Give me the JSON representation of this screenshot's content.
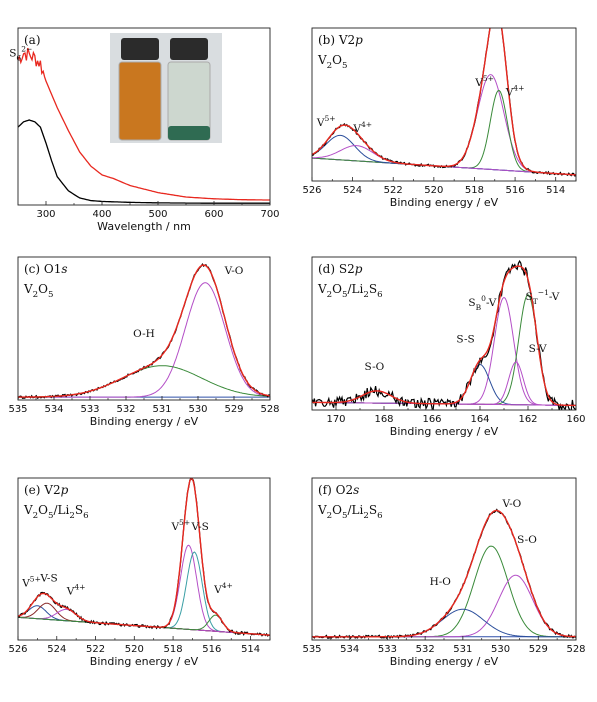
{
  "figure": {
    "panels": [
      {
        "id": "a",
        "title": "(a)",
        "subtitle": "",
        "xlabel": "Wavelength / nm",
        "xlim": [
          250,
          700
        ],
        "xticks": [
          300,
          400,
          500,
          600,
          700
        ],
        "reversed": false,
        "annotations": [
          {
            "text": "S6 2−",
            "x": 255,
            "y": 0.84
          }
        ]
      },
      {
        "id": "b",
        "title": "(b) V2p",
        "subtitle": "V2O5",
        "xlabel": "Binding energy / eV",
        "xlim": [
          513,
          526
        ],
        "xticks": [
          526,
          524,
          522,
          520,
          518,
          516,
          514
        ],
        "reversed": true,
        "annotations": [
          {
            "text": "V5+",
            "x": 517.5,
            "y": 0.62
          },
          {
            "text": "V4+",
            "x": 516.0,
            "y": 0.56
          },
          {
            "text": "V5+",
            "x": 525.3,
            "y": 0.36
          },
          {
            "text": "V4+",
            "x": 523.5,
            "y": 0.32
          }
        ]
      },
      {
        "id": "c",
        "title": "(c) O1s",
        "subtitle": "V2O5",
        "xlabel": "Binding energy / eV",
        "xlim": [
          528,
          535
        ],
        "xticks": [
          535,
          534,
          533,
          532,
          531,
          530,
          529,
          528
        ],
        "reversed": true,
        "annotations": [
          {
            "text": "V-O",
            "x": 529.0,
            "y": 0.88
          },
          {
            "text": "O-H",
            "x": 531.5,
            "y": 0.44
          }
        ]
      },
      {
        "id": "d",
        "title": "(d) S2p",
        "subtitle": "V2O5/Li2S6",
        "xlabel": "Binding energy / eV",
        "xlim": [
          160,
          171
        ],
        "xticks": [
          170,
          168,
          166,
          164,
          162,
          160
        ],
        "reversed": true,
        "annotations": [
          {
            "text": "SB0-V",
            "x": 163.9,
            "y": 0.68
          },
          {
            "text": "ST−1-V",
            "x": 161.4,
            "y": 0.72
          },
          {
            "text": "S-S",
            "x": 164.6,
            "y": 0.44
          },
          {
            "text": "S-V",
            "x": 161.6,
            "y": 0.38
          },
          {
            "text": "S-O",
            "x": 168.4,
            "y": 0.26
          }
        ]
      },
      {
        "id": "e",
        "title": "(e) V2p",
        "subtitle": "V2O5/Li2S6",
        "xlabel": "Binding energy / eV",
        "xlim": [
          513,
          526
        ],
        "xticks": [
          526,
          524,
          522,
          520,
          518,
          516,
          514
        ],
        "reversed": true,
        "annotations": [
          {
            "text": "V5+",
            "x": 517.6,
            "y": 0.68
          },
          {
            "text": "V-S",
            "x": 516.6,
            "y": 0.68
          },
          {
            "text": "V5+",
            "x": 525.3,
            "y": 0.33
          },
          {
            "text": "V-S",
            "x": 524.4,
            "y": 0.36
          },
          {
            "text": "V4+",
            "x": 523.0,
            "y": 0.28
          },
          {
            "text": "V4+",
            "x": 515.4,
            "y": 0.29
          }
        ]
      },
      {
        "id": "f",
        "title": "(f) O2s",
        "subtitle": "V2O5/Li2S6",
        "xlabel": "Binding energy / eV",
        "xlim": [
          528,
          535
        ],
        "xticks": [
          535,
          534,
          533,
          532,
          531,
          530,
          529,
          528
        ],
        "reversed": true,
        "annotations": [
          {
            "text": "V-O",
            "x": 529.7,
            "y": 0.82
          },
          {
            "text": "S-O",
            "x": 529.3,
            "y": 0.6
          },
          {
            "text": "H-O",
            "x": 531.6,
            "y": 0.34
          }
        ]
      }
    ]
  },
  "chart_data": [
    {
      "panel": "a",
      "type": "line",
      "xlim": [
        250,
        700
      ],
      "xlabel": "Wavelength / nm",
      "ylabel": "",
      "series": [
        {
          "color": "#e8281f",
          "x": [
            250,
            260,
            270,
            280,
            290,
            300,
            320,
            340,
            360,
            380,
            400,
            420,
            450,
            500,
            550,
            600,
            650,
            700
          ],
          "y": [
            0.82,
            0.86,
            0.85,
            0.83,
            0.8,
            0.7,
            0.55,
            0.42,
            0.3,
            0.22,
            0.17,
            0.15,
            0.11,
            0.07,
            0.045,
            0.035,
            0.03,
            0.028
          ],
          "noise": true
        },
        {
          "color": "#000000",
          "x": [
            250,
            260,
            270,
            280,
            290,
            300,
            310,
            320,
            340,
            360,
            380,
            400,
            450,
            500,
            600,
            700
          ],
          "y": [
            0.44,
            0.47,
            0.48,
            0.47,
            0.44,
            0.35,
            0.25,
            0.16,
            0.08,
            0.04,
            0.025,
            0.02,
            0.015,
            0.012,
            0.01,
            0.01
          ]
        }
      ]
    },
    {
      "panel": "b",
      "type": "line",
      "xlim": [
        513,
        526
      ],
      "xlabel": "Binding energy / eV",
      "baseline": {
        "color": "#2e4fa8",
        "from": [
          526,
          0.15
        ],
        "to": [
          513,
          0.04
        ]
      },
      "peaks": [
        {
          "name": "V5+",
          "center": 517.2,
          "height": 0.62,
          "width": 0.65,
          "color": "#b44fc7"
        },
        {
          "name": "V4+",
          "center": 516.8,
          "height": 0.52,
          "width": 0.42,
          "color": "#3a8a3a"
        },
        {
          "name": "V5+",
          "center": 524.6,
          "height": 0.16,
          "width": 0.7,
          "color": "#2c4f9c"
        },
        {
          "name": "V4+",
          "center": 523.8,
          "height": 0.1,
          "width": 0.8,
          "color": "#b44fc7"
        }
      ],
      "fit_color": "#e8281f",
      "data_color": "#000000"
    },
    {
      "panel": "c",
      "type": "line",
      "xlim": [
        528,
        535
      ],
      "xlabel": "Binding energy / eV",
      "baseline": {
        "color": "#2e4fa8",
        "from": [
          535,
          0.02
        ],
        "to": [
          528,
          0.02
        ]
      },
      "peaks": [
        {
          "name": "V-O",
          "center": 529.8,
          "height": 0.8,
          "width": 0.55,
          "color": "#b44fc7"
        },
        {
          "name": "O-H",
          "center": 531.0,
          "height": 0.22,
          "width": 1.1,
          "color": "#3a8a3a"
        }
      ],
      "fit_color": "#e8281f",
      "data_color": "#000000"
    },
    {
      "panel": "d",
      "type": "line",
      "xlim": [
        160,
        171
      ],
      "xlabel": "Binding energy / eV",
      "baseline": {
        "color": "#8a2a2a",
        "from": [
          171,
          0.05
        ],
        "to": [
          160,
          0.03
        ]
      },
      "peaks": [
        {
          "name": "SB0-V",
          "center": 163.0,
          "height": 0.7,
          "width": 0.4,
          "color": "#b44fc7"
        },
        {
          "name": "ST−1-V",
          "center": 162.0,
          "height": 0.72,
          "width": 0.38,
          "color": "#3a8a3a"
        },
        {
          "name": "S-S",
          "center": 164.0,
          "height": 0.26,
          "width": 0.4,
          "color": "#2c4f9c"
        },
        {
          "name": "S-V",
          "center": 162.5,
          "height": 0.28,
          "width": 0.3,
          "color": "#b44fc7"
        },
        {
          "name": "S-O",
          "center": 168.3,
          "height": 0.08,
          "width": 0.6,
          "color": "#b44fc7"
        }
      ],
      "fit_color": "#e8281f",
      "data_color": "#000000"
    },
    {
      "panel": "e",
      "type": "line",
      "xlim": [
        513,
        526
      ],
      "xlabel": "Binding energy / eV",
      "baseline": {
        "color": "#8a2a2a",
        "from": [
          526,
          0.14
        ],
        "to": [
          513,
          0.03
        ]
      },
      "peaks": [
        {
          "name": "V5+",
          "center": 517.2,
          "height": 0.52,
          "width": 0.42,
          "color": "#b44fc7"
        },
        {
          "name": "V-S",
          "center": 516.9,
          "height": 0.48,
          "width": 0.4,
          "color": "#3a9fa5"
        },
        {
          "name": "V5+",
          "center": 525.0,
          "height": 0.08,
          "width": 0.45,
          "color": "#2c4f9c"
        },
        {
          "name": "V-S",
          "center": 524.5,
          "height": 0.1,
          "width": 0.45,
          "color": "#8a2a2a"
        },
        {
          "name": "V4+",
          "center": 523.5,
          "height": 0.07,
          "width": 0.5,
          "color": "#b44fc7"
        },
        {
          "name": "V4+",
          "center": 515.8,
          "height": 0.1,
          "width": 0.35,
          "color": "#3a8a3a"
        }
      ],
      "fit_color": "#e8281f",
      "data_color": "#000000"
    },
    {
      "panel": "f",
      "type": "line",
      "xlim": [
        528,
        535
      ],
      "xlabel": "Binding energy / eV",
      "baseline": {
        "color": "#2e4fa8",
        "from": [
          535,
          0.02
        ],
        "to": [
          528,
          0.02
        ]
      },
      "peaks": [
        {
          "name": "V-O",
          "center": 530.25,
          "height": 0.56,
          "width": 0.45,
          "color": "#3a8a3a"
        },
        {
          "name": "S-O",
          "center": 529.6,
          "height": 0.38,
          "width": 0.45,
          "color": "#b44fc7"
        },
        {
          "name": "H-O",
          "center": 531.0,
          "height": 0.17,
          "width": 0.55,
          "color": "#2c4f9c"
        }
      ],
      "fit_color": "#e8281f",
      "data_color": "#000000"
    }
  ]
}
